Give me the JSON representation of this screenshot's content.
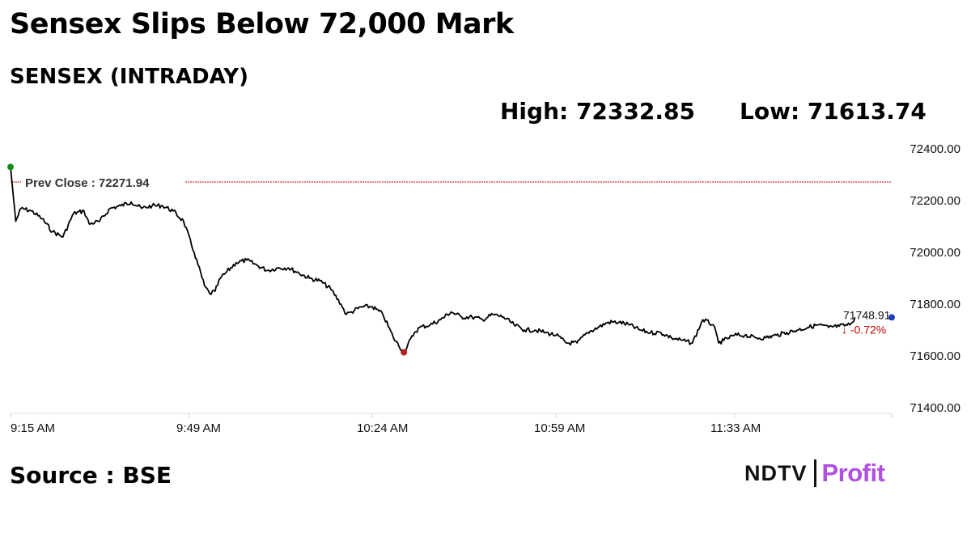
{
  "headline": "Sensex Slips Below 72,000 Mark",
  "subtitle": "SENSEX (INTRADAY)",
  "high_text": "High: 72332.85",
  "low_text": "Low: 71613.74",
  "source": "Source : BSE",
  "brand": {
    "ndtv": "NDTV",
    "profit": "Profit"
  },
  "chart_data": {
    "type": "line",
    "title": "",
    "xlabel": "",
    "ylabel": "",
    "ylim": [
      71400,
      72400
    ],
    "y_ticks": [
      "72400.00",
      "72200.00",
      "72000.00",
      "71800.00",
      "71600.00",
      "71400.00"
    ],
    "x_ticks": [
      "9:15 AM",
      "9:49 AM",
      "10:24 AM",
      "10:59 AM",
      "11:33 AM"
    ],
    "grid": false,
    "prev_close": {
      "label": "Prev Close : 72271.94",
      "value": 72271.94
    },
    "last_value": "71748.91",
    "change": "↓ -0.72%",
    "colors": {
      "line": "#000000",
      "prev_close": "#c00000",
      "start_marker": "#1a8a1a",
      "low_marker": "#b22222",
      "end_marker": "#1f3fbf",
      "change": "#c00000"
    },
    "series": [
      {
        "x": [
          "9:15",
          "9:16",
          "9:17",
          "9:19",
          "9:21",
          "9:23",
          "9:25",
          "9:27",
          "9:29",
          "9:30",
          "9:32",
          "9:34",
          "9:36",
          "9:38",
          "9:40",
          "9:42",
          "9:44",
          "9:46",
          "9:48",
          "9:50",
          "9:52",
          "9:53",
          "9:54",
          "9:55",
          "9:56",
          "9:58",
          "10:00",
          "10:02",
          "10:04",
          "10:06",
          "10:08",
          "10:10",
          "10:12",
          "10:14",
          "10:16",
          "10:18",
          "10:19",
          "10:20",
          "10:22",
          "10:24",
          "10:26",
          "10:28",
          "10:30",
          "10:32",
          "10:33",
          "10:35",
          "10:37",
          "10:39",
          "10:41",
          "10:43",
          "10:45",
          "10:47",
          "10:49",
          "10:51",
          "10:53",
          "10:55",
          "10:57",
          "10:59",
          "11:01",
          "11:03",
          "11:05",
          "11:07",
          "11:09",
          "11:11",
          "11:13",
          "11:15",
          "11:17",
          "11:19",
          "11:21",
          "11:23",
          "11:25",
          "11:27",
          "11:29",
          "11:30",
          "11:31",
          "11:33",
          "11:35",
          "11:37",
          "11:39",
          "11:41",
          "11:43",
          "11:45",
          "11:47",
          "11:49",
          "11:51",
          "11:53",
          "11:55",
          "11:56"
        ],
        "y": [
          72330,
          72120,
          72170,
          72160,
          72130,
          72080,
          72060,
          72150,
          72160,
          72110,
          72120,
          72170,
          72180,
          72195,
          72170,
          72180,
          72180,
          72160,
          72120,
          72000,
          71870,
          71840,
          71850,
          71900,
          71920,
          71960,
          71970,
          71950,
          71930,
          71940,
          71940,
          71920,
          71900,
          71890,
          71860,
          71800,
          71760,
          71770,
          71790,
          71790,
          71760,
          71670,
          71613.74,
          71690,
          71710,
          71720,
          71740,
          71770,
          71750,
          71750,
          71740,
          71760,
          71750,
          71720,
          71700,
          71700,
          71690,
          71680,
          71650,
          71650,
          71690,
          71710,
          71730,
          71730,
          71720,
          71700,
          71690,
          71690,
          71670,
          71660,
          71650,
          71740,
          71720,
          71650,
          71660,
          71680,
          71680,
          71670,
          71670,
          71680,
          71690,
          71700,
          71710,
          71720,
          71710,
          71715,
          71720,
          71748.91
        ]
      }
    ]
  }
}
